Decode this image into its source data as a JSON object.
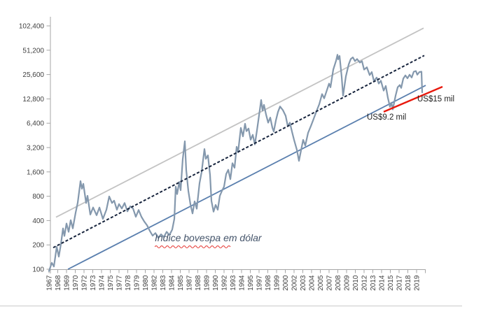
{
  "chart_data": {
    "type": "line",
    "title": "",
    "series_label": "Indice bovespa em dólar",
    "y_scale": "log2",
    "grid": "off",
    "legend": "none",
    "ylim": [
      100,
      102400
    ],
    "x_range_years": [
      1967,
      2020.5
    ],
    "y_ticks": [
      "100",
      "200",
      "400",
      "800",
      "1,600",
      "3,200",
      "6,400",
      "12,800",
      "25,600",
      "51,200",
      "102,400"
    ],
    "x_tick_labels": [
      "1967",
      "1968",
      "1969",
      "1970",
      "1972",
      "1973",
      "1974",
      "1975",
      "1977",
      "1978",
      "1979",
      "1980",
      "1982",
      "1983",
      "1984",
      "1985",
      "1987",
      "1988",
      "1989",
      "1990",
      "1992",
      "1993",
      "1994",
      "1995",
      "1997",
      "1998",
      "1999",
      "2000",
      "2002",
      "2003",
      "2004",
      "2005",
      "2007",
      "2008",
      "2009",
      "2010",
      "2012",
      "2013",
      "2014",
      "2015",
      "2017",
      "2018",
      "2019"
    ],
    "annotations": {
      "us15_mil": "US$15 mil",
      "us92_mil": "US$9.2 mil"
    },
    "colors": {
      "series": "#8498ad",
      "upper_channel": "#c3c3c3",
      "lower_channel": "#5a7fae",
      "trend_dashed": "#16233c",
      "red_line": "#e8180c",
      "axis": "#a6a6a6",
      "tick_text": "#404040",
      "annotation_text": "#1f1f1f",
      "series_label_text": "#44546a",
      "squiggle": "#e53935"
    },
    "trend_lines": [
      {
        "name": "upper-channel-line",
        "layer": "below",
        "style": "solid",
        "color_key": "upper_channel",
        "width": 1.8,
        "points": [
          [
            1968.0,
            440
          ],
          [
            2020.5,
            96000
          ]
        ]
      },
      {
        "name": "lower-channel-line",
        "layer": "below",
        "style": "solid",
        "color_key": "lower_channel",
        "width": 1.8,
        "points": [
          [
            1969.7,
            100
          ],
          [
            2020.8,
            18800
          ]
        ]
      },
      {
        "name": "regression-dashed-line",
        "layer": "above",
        "style": "dashed",
        "color_key": "trend_dashed",
        "width": 2,
        "points": [
          [
            1967.6,
            185
          ],
          [
            2020.6,
            44000
          ]
        ]
      },
      {
        "name": "support-red-line",
        "layer": "above",
        "style": "solid",
        "color_key": "red_line",
        "width": 2.4,
        "points": [
          [
            2014.8,
            8850
          ],
          [
            2023.2,
            18100
          ]
        ]
      }
    ],
    "series": [
      {
        "name": "bovespa-usd-index",
        "points": [
          [
            1967.0,
            95
          ],
          [
            1967.4,
            120
          ],
          [
            1967.7,
            108
          ],
          [
            1968.1,
            190
          ],
          [
            1968.4,
            143
          ],
          [
            1968.7,
            205
          ],
          [
            1969.0,
            320
          ],
          [
            1969.2,
            258
          ],
          [
            1969.5,
            368
          ],
          [
            1969.8,
            290
          ],
          [
            1970.1,
            405
          ],
          [
            1970.4,
            320
          ],
          [
            1970.8,
            500
          ],
          [
            1971.1,
            665
          ],
          [
            1971.5,
            1230
          ],
          [
            1971.7,
            990
          ],
          [
            1971.9,
            1140
          ],
          [
            1972.3,
            660
          ],
          [
            1972.5,
            810
          ],
          [
            1972.9,
            475
          ],
          [
            1973.3,
            580
          ],
          [
            1973.8,
            465
          ],
          [
            1974.2,
            580
          ],
          [
            1974.7,
            420
          ],
          [
            1975.2,
            545
          ],
          [
            1975.6,
            795
          ],
          [
            1976.0,
            660
          ],
          [
            1976.3,
            705
          ],
          [
            1976.7,
            545
          ],
          [
            1977.0,
            640
          ],
          [
            1977.4,
            565
          ],
          [
            1977.8,
            660
          ],
          [
            1978.2,
            520
          ],
          [
            1978.6,
            600
          ],
          [
            1979.0,
            565
          ],
          [
            1979.4,
            445
          ],
          [
            1979.8,
            540
          ],
          [
            1980.2,
            445
          ],
          [
            1980.6,
            390
          ],
          [
            1981.0,
            350
          ],
          [
            1981.4,
            298
          ],
          [
            1981.8,
            260
          ],
          [
            1982.2,
            280
          ],
          [
            1982.6,
            245
          ],
          [
            1983.0,
            270
          ],
          [
            1983.4,
            250
          ],
          [
            1983.8,
            290
          ],
          [
            1984.2,
            265
          ],
          [
            1984.6,
            310
          ],
          [
            1984.9,
            420
          ],
          [
            1985.1,
            1050
          ],
          [
            1985.3,
            850
          ],
          [
            1985.6,
            1200
          ],
          [
            1985.8,
            950
          ],
          [
            1986.1,
            2300
          ],
          [
            1986.4,
            3830
          ],
          [
            1986.6,
            1680
          ],
          [
            1986.9,
            930
          ],
          [
            1987.2,
            635
          ],
          [
            1987.5,
            490
          ],
          [
            1987.8,
            690
          ],
          [
            1988.1,
            560
          ],
          [
            1988.5,
            1160
          ],
          [
            1988.8,
            1600
          ],
          [
            1989.2,
            3070
          ],
          [
            1989.4,
            2320
          ],
          [
            1989.7,
            2560
          ],
          [
            1990.0,
            1470
          ],
          [
            1990.2,
            700
          ],
          [
            1990.5,
            515
          ],
          [
            1990.8,
            625
          ],
          [
            1991.1,
            545
          ],
          [
            1991.4,
            810
          ],
          [
            1991.7,
            930
          ],
          [
            1992.0,
            1050
          ],
          [
            1992.3,
            1500
          ],
          [
            1992.6,
            1700
          ],
          [
            1992.9,
            1300
          ],
          [
            1993.2,
            2050
          ],
          [
            1993.5,
            1800
          ],
          [
            1993.8,
            3270
          ],
          [
            1994.0,
            2800
          ],
          [
            1994.4,
            5600
          ],
          [
            1994.7,
            4400
          ],
          [
            1995.0,
            6300
          ],
          [
            1995.2,
            5100
          ],
          [
            1995.5,
            5500
          ],
          [
            1995.8,
            4000
          ],
          [
            1996.1,
            4600
          ],
          [
            1996.4,
            3500
          ],
          [
            1996.7,
            5200
          ],
          [
            1997.0,
            8000
          ],
          [
            1997.3,
            12400
          ],
          [
            1997.5,
            9200
          ],
          [
            1997.7,
            10800
          ],
          [
            1998.0,
            8200
          ],
          [
            1998.3,
            6500
          ],
          [
            1998.6,
            7500
          ],
          [
            1998.9,
            5650
          ],
          [
            1999.1,
            5050
          ],
          [
            1999.4,
            6900
          ],
          [
            1999.7,
            8800
          ],
          [
            2000.0,
            10300
          ],
          [
            2000.4,
            9300
          ],
          [
            2000.8,
            7900
          ],
          [
            2001.1,
            5900
          ],
          [
            2001.4,
            6500
          ],
          [
            2001.7,
            5050
          ],
          [
            2002.0,
            3980
          ],
          [
            2002.4,
            3000
          ],
          [
            2002.7,
            2190
          ],
          [
            2003.0,
            2960
          ],
          [
            2003.3,
            3980
          ],
          [
            2003.6,
            3390
          ],
          [
            2004.0,
            4860
          ],
          [
            2004.4,
            5900
          ],
          [
            2004.8,
            7250
          ],
          [
            2005.2,
            9000
          ],
          [
            2005.6,
            11000
          ],
          [
            2006.0,
            14700
          ],
          [
            2006.3,
            13000
          ],
          [
            2006.7,
            16500
          ],
          [
            2007.0,
            19800
          ],
          [
            2007.2,
            17800
          ],
          [
            2007.6,
            29500
          ],
          [
            2008.0,
            38000
          ],
          [
            2008.2,
            45000
          ],
          [
            2008.3,
            39500
          ],
          [
            2008.5,
            43500
          ],
          [
            2008.8,
            24000
          ],
          [
            2009.0,
            14000
          ],
          [
            2009.4,
            24300
          ],
          [
            2009.8,
            34100
          ],
          [
            2010.1,
            39800
          ],
          [
            2010.4,
            41800
          ],
          [
            2010.7,
            37500
          ],
          [
            2011.0,
            39800
          ],
          [
            2011.4,
            36000
          ],
          [
            2011.7,
            37500
          ],
          [
            2012.0,
            29500
          ],
          [
            2012.4,
            31500
          ],
          [
            2012.8,
            25200
          ],
          [
            2013.1,
            27500
          ],
          [
            2013.4,
            21300
          ],
          [
            2013.8,
            23500
          ],
          [
            2014.1,
            19800
          ],
          [
            2014.4,
            21500
          ],
          [
            2014.8,
            16200
          ],
          [
            2015.1,
            18500
          ],
          [
            2015.4,
            13200
          ],
          [
            2015.7,
            10200
          ],
          [
            2015.9,
            11500
          ],
          [
            2016.1,
            9500
          ],
          [
            2016.5,
            14000
          ],
          [
            2016.8,
            17800
          ],
          [
            2017.1,
            19000
          ],
          [
            2017.3,
            17500
          ],
          [
            2017.6,
            22800
          ],
          [
            2017.9,
            25000
          ],
          [
            2018.2,
            23000
          ],
          [
            2018.5,
            25500
          ],
          [
            2018.8,
            23500
          ],
          [
            2019.1,
            27800
          ],
          [
            2019.4,
            28300
          ],
          [
            2019.6,
            25500
          ],
          [
            2019.9,
            27500
          ],
          [
            2020.2,
            27800
          ],
          [
            2020.3,
            15400
          ]
        ]
      }
    ]
  }
}
